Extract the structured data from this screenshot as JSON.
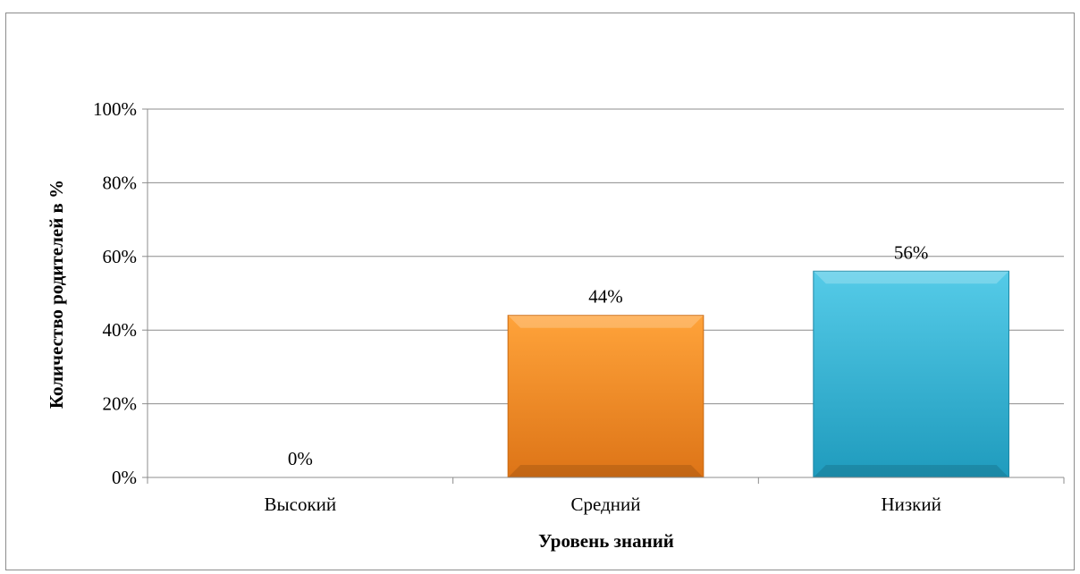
{
  "chart_data": {
    "type": "bar",
    "categories": [
      "Высокий",
      "Средний",
      "Низкий"
    ],
    "values": [
      0,
      44,
      56
    ],
    "data_labels": [
      "0%",
      "44%",
      "56%"
    ],
    "y_ticks": [
      "0%",
      "20%",
      "40%",
      "60%",
      "80%",
      "100%"
    ],
    "ylim": [
      0,
      100
    ],
    "xlabel": "Уровень знаний",
    "ylabel": "Количество родителей в %",
    "grid": true,
    "colors": [
      "#f7941d",
      "#f7941d",
      "#2cb3d6"
    ]
  }
}
